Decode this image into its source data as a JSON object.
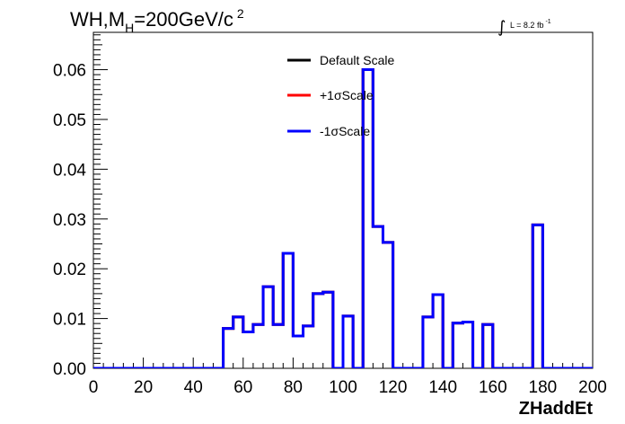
{
  "chart_data": {
    "type": "line",
    "title": "WH,M",
    "title_sub": "H",
    "title_rest": "=200GeV/c",
    "title_sup": "2",
    "lumi_label": "L = 8.2 fb",
    "lumi_sup": "-1",
    "lumi_integral": "∫",
    "xlabel": "ZHaddEt",
    "ylabel": "",
    "xlim": [
      0,
      200
    ],
    "ylim": [
      0,
      0.0675
    ],
    "xticks": [
      "0",
      "20",
      "40",
      "60",
      "80",
      "100",
      "120",
      "140",
      "160",
      "180",
      "200"
    ],
    "yticks": [
      "0.00",
      "0.01",
      "0.02",
      "0.03",
      "0.04",
      "0.05",
      "0.06"
    ],
    "legend": [
      {
        "label": "Default Scale",
        "color": "#000000"
      },
      {
        "label": "+1σScale",
        "color": "#ff0000"
      },
      {
        "label": "-1σScale",
        "color": "#0000ff"
      }
    ],
    "bin_edges": [
      0,
      4,
      8,
      12,
      16,
      20,
      24,
      28,
      32,
      36,
      40,
      44,
      48,
      52,
      56,
      60,
      64,
      68,
      72,
      76,
      80,
      84,
      88,
      92,
      96,
      100,
      104,
      108,
      112,
      116,
      120,
      124,
      128,
      132,
      136,
      140,
      144,
      148,
      152,
      156,
      160,
      164,
      168,
      172,
      176,
      180,
      184,
      188,
      192,
      196,
      200
    ],
    "series": [
      {
        "name": "Default Scale",
        "color": "#000000",
        "values": [
          0,
          0,
          0,
          0,
          0,
          0,
          0,
          0,
          0,
          0,
          0,
          0,
          0,
          0.008,
          0.0103,
          0.0073,
          0.0088,
          0.0164,
          0.0088,
          0.0231,
          0.0065,
          0.0085,
          0.015,
          0.0153,
          0,
          0.0105,
          0,
          0.06,
          0.0285,
          0.0253,
          0,
          0,
          0,
          0.0103,
          0.0148,
          0,
          0.0091,
          0.0093,
          0,
          0.0088,
          0,
          0,
          0,
          0,
          0.0288,
          0,
          0,
          0,
          0,
          0
        ]
      },
      {
        "name": "+1σScale",
        "color": "#ff0000",
        "values": [
          0,
          0,
          0,
          0,
          0,
          0,
          0,
          0,
          0,
          0,
          0,
          0,
          0,
          0.008,
          0.0103,
          0.0073,
          0.0088,
          0.0164,
          0.0088,
          0.0231,
          0.0065,
          0.0085,
          0.015,
          0.0153,
          0,
          0.0105,
          0,
          0.06,
          0.0285,
          0.0253,
          0,
          0,
          0,
          0.0103,
          0.0148,
          0,
          0.0091,
          0.0093,
          0,
          0.0088,
          0,
          0,
          0,
          0,
          0.0288,
          0,
          0,
          0,
          0,
          0
        ]
      },
      {
        "name": "-1σScale",
        "color": "#0000ff",
        "values": [
          0,
          0,
          0,
          0,
          0,
          0,
          0,
          0,
          0,
          0,
          0,
          0,
          0,
          0.008,
          0.0103,
          0.0073,
          0.0088,
          0.0164,
          0.0088,
          0.0231,
          0.0065,
          0.0085,
          0.015,
          0.0153,
          0,
          0.0105,
          0,
          0.06,
          0.0285,
          0.0253,
          0,
          0,
          0,
          0.0103,
          0.0148,
          0,
          0.0091,
          0.0093,
          0,
          0.0088,
          0,
          0,
          0,
          0,
          0.0288,
          0,
          0,
          0,
          0,
          0
        ]
      }
    ]
  }
}
